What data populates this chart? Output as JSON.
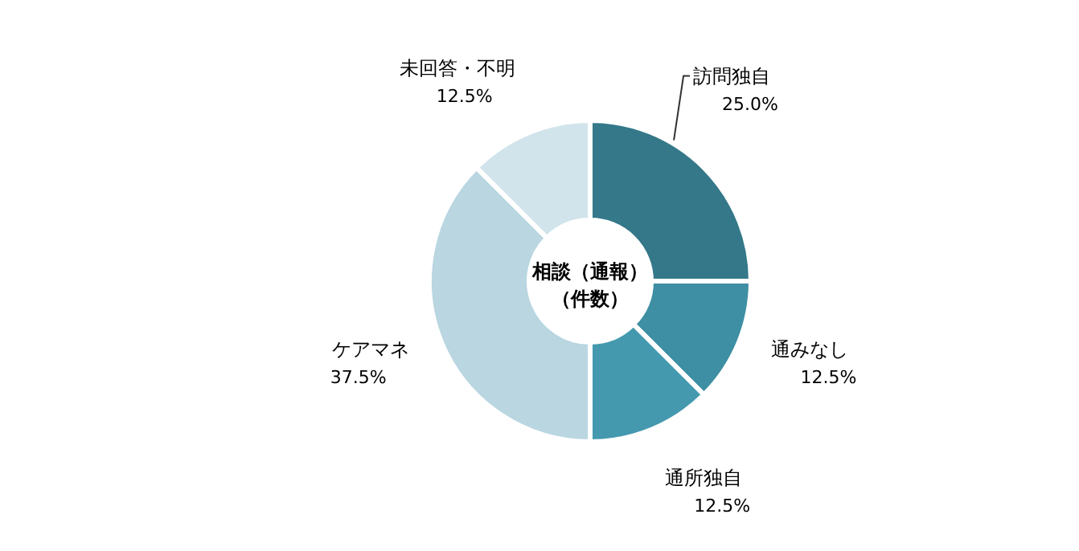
{
  "chart_data": {
    "type": "donut",
    "title": "相談（通報）",
    "subtitle": "（件数）",
    "categories": [
      "訪問独自",
      "通みなし",
      "通所独自",
      "ケアマネ",
      "未回答・不明"
    ],
    "values": [
      25.0,
      12.5,
      12.5,
      37.5,
      12.5
    ],
    "value_labels": [
      "25.0%",
      "12.5%",
      "12.5%",
      "37.5%",
      "12.5%"
    ],
    "colors": [
      "#347889",
      "#3e8fa3",
      "#4499af",
      "#b9d6e1",
      "#d2e4eb"
    ]
  }
}
